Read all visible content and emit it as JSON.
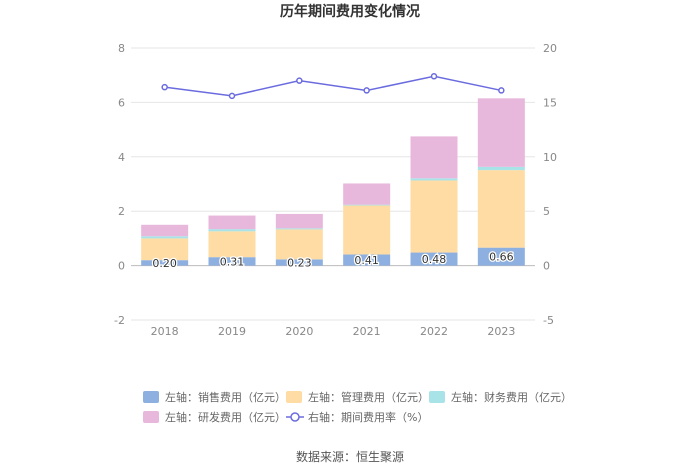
{
  "chart_data": {
    "type": "bar",
    "title": "历年期间费用变化情况",
    "categories": [
      "2018",
      "2019",
      "2020",
      "2021",
      "2022",
      "2023"
    ],
    "left_axis": {
      "ylim": [
        -2,
        8
      ],
      "ticks": [
        -2,
        0,
        2,
        4,
        6,
        8
      ],
      "tick_labels": [
        "-2",
        "0",
        "2",
        "4",
        "6",
        "8"
      ]
    },
    "right_axis": {
      "ylim": [
        -5,
        20
      ],
      "ticks": [
        -5,
        0,
        5,
        10,
        15,
        20
      ],
      "tick_labels": [
        "-5",
        "0",
        "5",
        "10",
        "15",
        "20"
      ]
    },
    "stacked_series": [
      {
        "name": "左轴：销售费用（亿元）",
        "color": "#8eb0e0",
        "values": [
          0.2,
          0.31,
          0.23,
          0.41,
          0.48,
          0.66
        ]
      },
      {
        "name": "左轴：管理费用（亿元）",
        "color": "#ffdca3",
        "values": [
          0.8,
          0.95,
          1.1,
          1.8,
          2.65,
          2.85
        ]
      },
      {
        "name": "左轴：财务费用（亿元）",
        "color": "#a8e3e8",
        "values": [
          0.08,
          0.08,
          0.04,
          0.03,
          0.08,
          0.12
        ]
      },
      {
        "name": "左轴：研发费用（亿元）",
        "color": "#e8b8dc",
        "values": [
          0.42,
          0.5,
          0.53,
          0.78,
          1.54,
          2.52
        ]
      }
    ],
    "line_series": {
      "name": "右轴：期间费用率（%）",
      "color": "#6b6be0",
      "values": [
        16.4,
        15.6,
        17.0,
        16.1,
        17.4,
        16.1
      ]
    },
    "data_labels": [
      "0.20",
      "0.31",
      "0.23",
      "0.41",
      "0.48",
      "0.66"
    ],
    "source": "数据来源：恒生聚源"
  }
}
